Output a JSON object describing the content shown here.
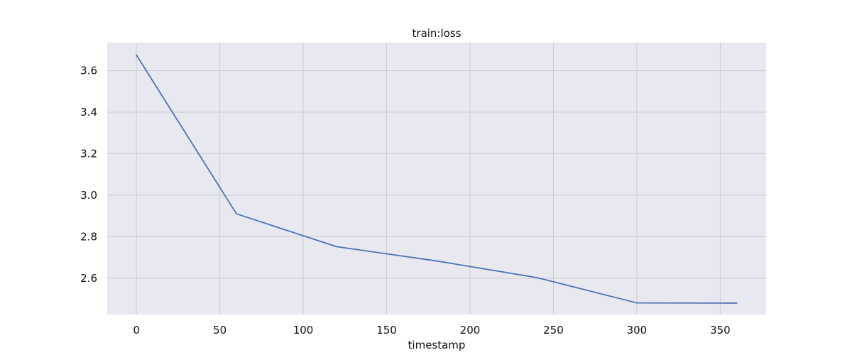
{
  "chart_data": {
    "type": "line",
    "title": "train:loss",
    "xlabel": "timestamp",
    "ylabel": "",
    "grid": true,
    "xlim": [
      -17.5,
      377.5
    ],
    "ylim": [
      2.425,
      3.735
    ],
    "x_ticks": [
      0,
      50,
      100,
      150,
      200,
      250,
      300,
      350
    ],
    "y_ticks": [
      2.6,
      2.8,
      3.0,
      3.2,
      3.4,
      3.6
    ],
    "x_tick_labels": [
      "0",
      "50",
      "100",
      "150",
      "200",
      "250",
      "300",
      "350"
    ],
    "y_tick_labels": [
      "2.6",
      "2.8",
      "3.0",
      "3.2",
      "3.4",
      "3.6"
    ],
    "series": [
      {
        "color": "#4c72b0",
        "x": [
          0,
          60,
          120,
          180,
          240,
          300,
          360
        ],
        "y": [
          3.675,
          2.91,
          2.752,
          2.683,
          2.603,
          2.481,
          2.48
        ]
      }
    ],
    "colors": {
      "plot_background": "#e8e8f1",
      "grid": "#cbcbd2",
      "line": "#4c72b0"
    }
  }
}
